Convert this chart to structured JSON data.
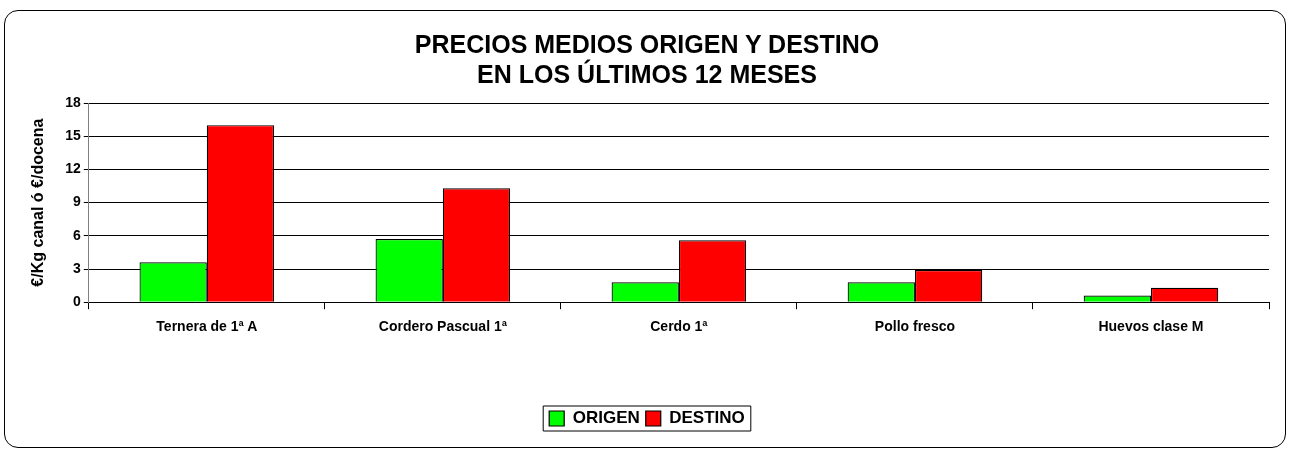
{
  "chart_data": {
    "type": "bar",
    "title": "PRECIOS MEDIOS ORIGEN Y DESTINO\nEN LOS ÚLTIMOS 12 MESES",
    "ylabel": "€/Kg canal ó €/docena",
    "categories": [
      "Ternera de 1ª A",
      "Cordero Pascual 1ª",
      "Cerdo 1ª",
      "Pollo fresco",
      "Huevos clase M"
    ],
    "series": [
      {
        "name": "ORIGEN",
        "color": "#00ff00",
        "values": [
          3.6,
          5.7,
          1.8,
          1.8,
          0.6
        ]
      },
      {
        "name": "DESTINO",
        "color": "#ff0000",
        "values": [
          16.0,
          10.3,
          5.6,
          2.9,
          1.3
        ]
      }
    ],
    "ylim": [
      0,
      18
    ],
    "yticks": [
      0,
      3,
      6,
      9,
      12,
      15,
      18
    ],
    "grid": "y",
    "legend": "bottom"
  }
}
